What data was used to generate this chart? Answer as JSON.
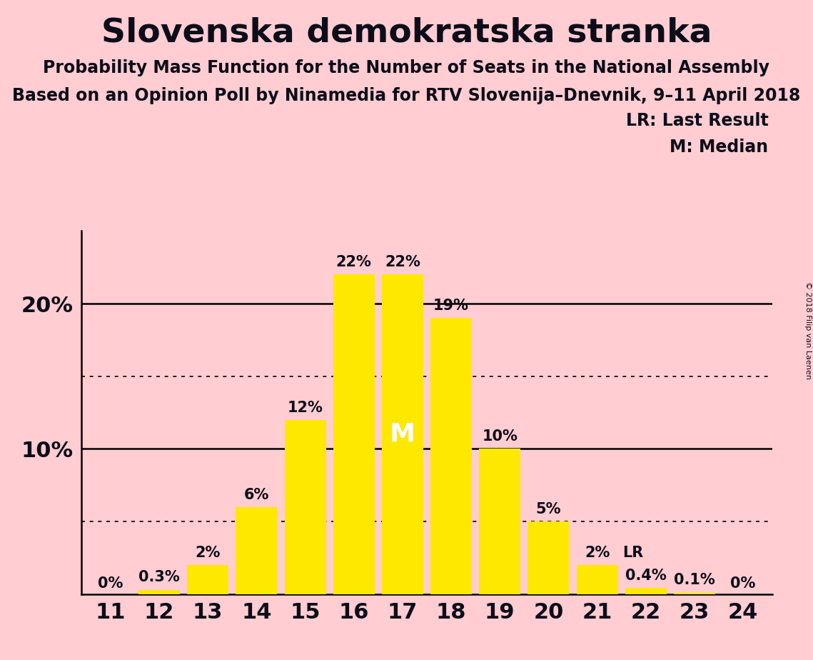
{
  "title": "Slovenska demokratska stranka",
  "subtitle1": "Probability Mass Function for the Number of Seats in the National Assembly",
  "subtitle2": "Based on an Opinion Poll by Ninamedia for RTV Slovenija–Dnevnik, 9–11 April 2018",
  "copyright": "© 2018 Filip van Laenen",
  "seats": [
    11,
    12,
    13,
    14,
    15,
    16,
    17,
    18,
    19,
    20,
    21,
    22,
    23,
    24
  ],
  "values": [
    0.0,
    0.3,
    2.0,
    6.0,
    12.0,
    22.0,
    22.0,
    19.0,
    10.0,
    5.0,
    2.0,
    0.4,
    0.1,
    0.0
  ],
  "labels": [
    "0%",
    "0.3%",
    "2%",
    "6%",
    "12%",
    "22%",
    "22%",
    "19%",
    "10%",
    "5%",
    "2%",
    "0.4%",
    "0.1%",
    "0%"
  ],
  "bar_color": "#FFE800",
  "background_color": "#FFCDD2",
  "text_color": "#0d0d1a",
  "median_seat": 17,
  "lr_seat": 21,
  "legend_lr": "LR: Last Result",
  "legend_m": "M: Median",
  "ylim_max": 25,
  "solid_hlines": [
    10,
    20
  ],
  "dotted_hlines": [
    5,
    15
  ],
  "title_fontsize": 34,
  "subtitle_fontsize": 17,
  "label_fontsize": 15,
  "tick_fontsize": 22,
  "median_label_fontsize": 26
}
